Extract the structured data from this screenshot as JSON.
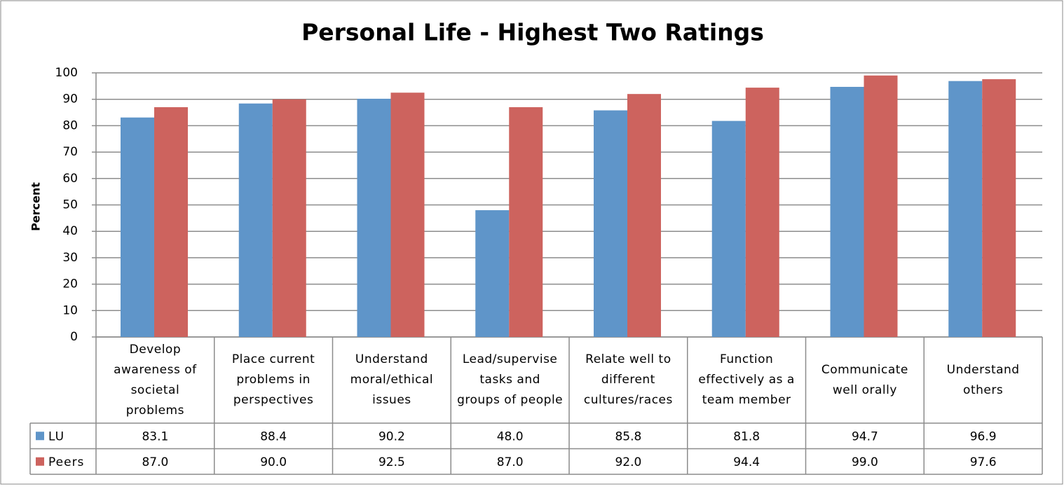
{
  "chart_data": {
    "type": "bar",
    "title": "Personal Life - Highest Two Ratings",
    "y_label": "Percent",
    "categories": [
      "Develop awareness of societal problems",
      "Place current problems in perspectives",
      "Understand moral/ethical issues",
      "Lead/supervise tasks and groups of people",
      "Relate well to different cultures/races",
      "Function effectively as a team member",
      "Communicate well orally",
      "Understand others"
    ],
    "series": [
      {
        "name": "LU",
        "color": "#5f95c9",
        "values": [
          83.1,
          88.4,
          90.2,
          48.0,
          85.8,
          81.8,
          94.7,
          96.9
        ],
        "value_labels": [
          "83.1",
          "88.4",
          "90.2",
          "48.0",
          "85.8",
          "81.8",
          "94.7",
          "96.9"
        ]
      },
      {
        "name": "Peers",
        "color": "#cd635e",
        "values": [
          87.0,
          90.0,
          92.5,
          87.0,
          92.0,
          94.4,
          99.0,
          97.6
        ],
        "value_labels": [
          "87.0",
          "90.0",
          "92.5",
          "87.0",
          "92.0",
          "94.4",
          "99.0",
          "97.6"
        ]
      }
    ],
    "ylim": [
      0,
      100
    ],
    "yticks": [
      0,
      10,
      20,
      30,
      40,
      50,
      60,
      70,
      80,
      90,
      100
    ],
    "grid": true,
    "legend": "table"
  }
}
